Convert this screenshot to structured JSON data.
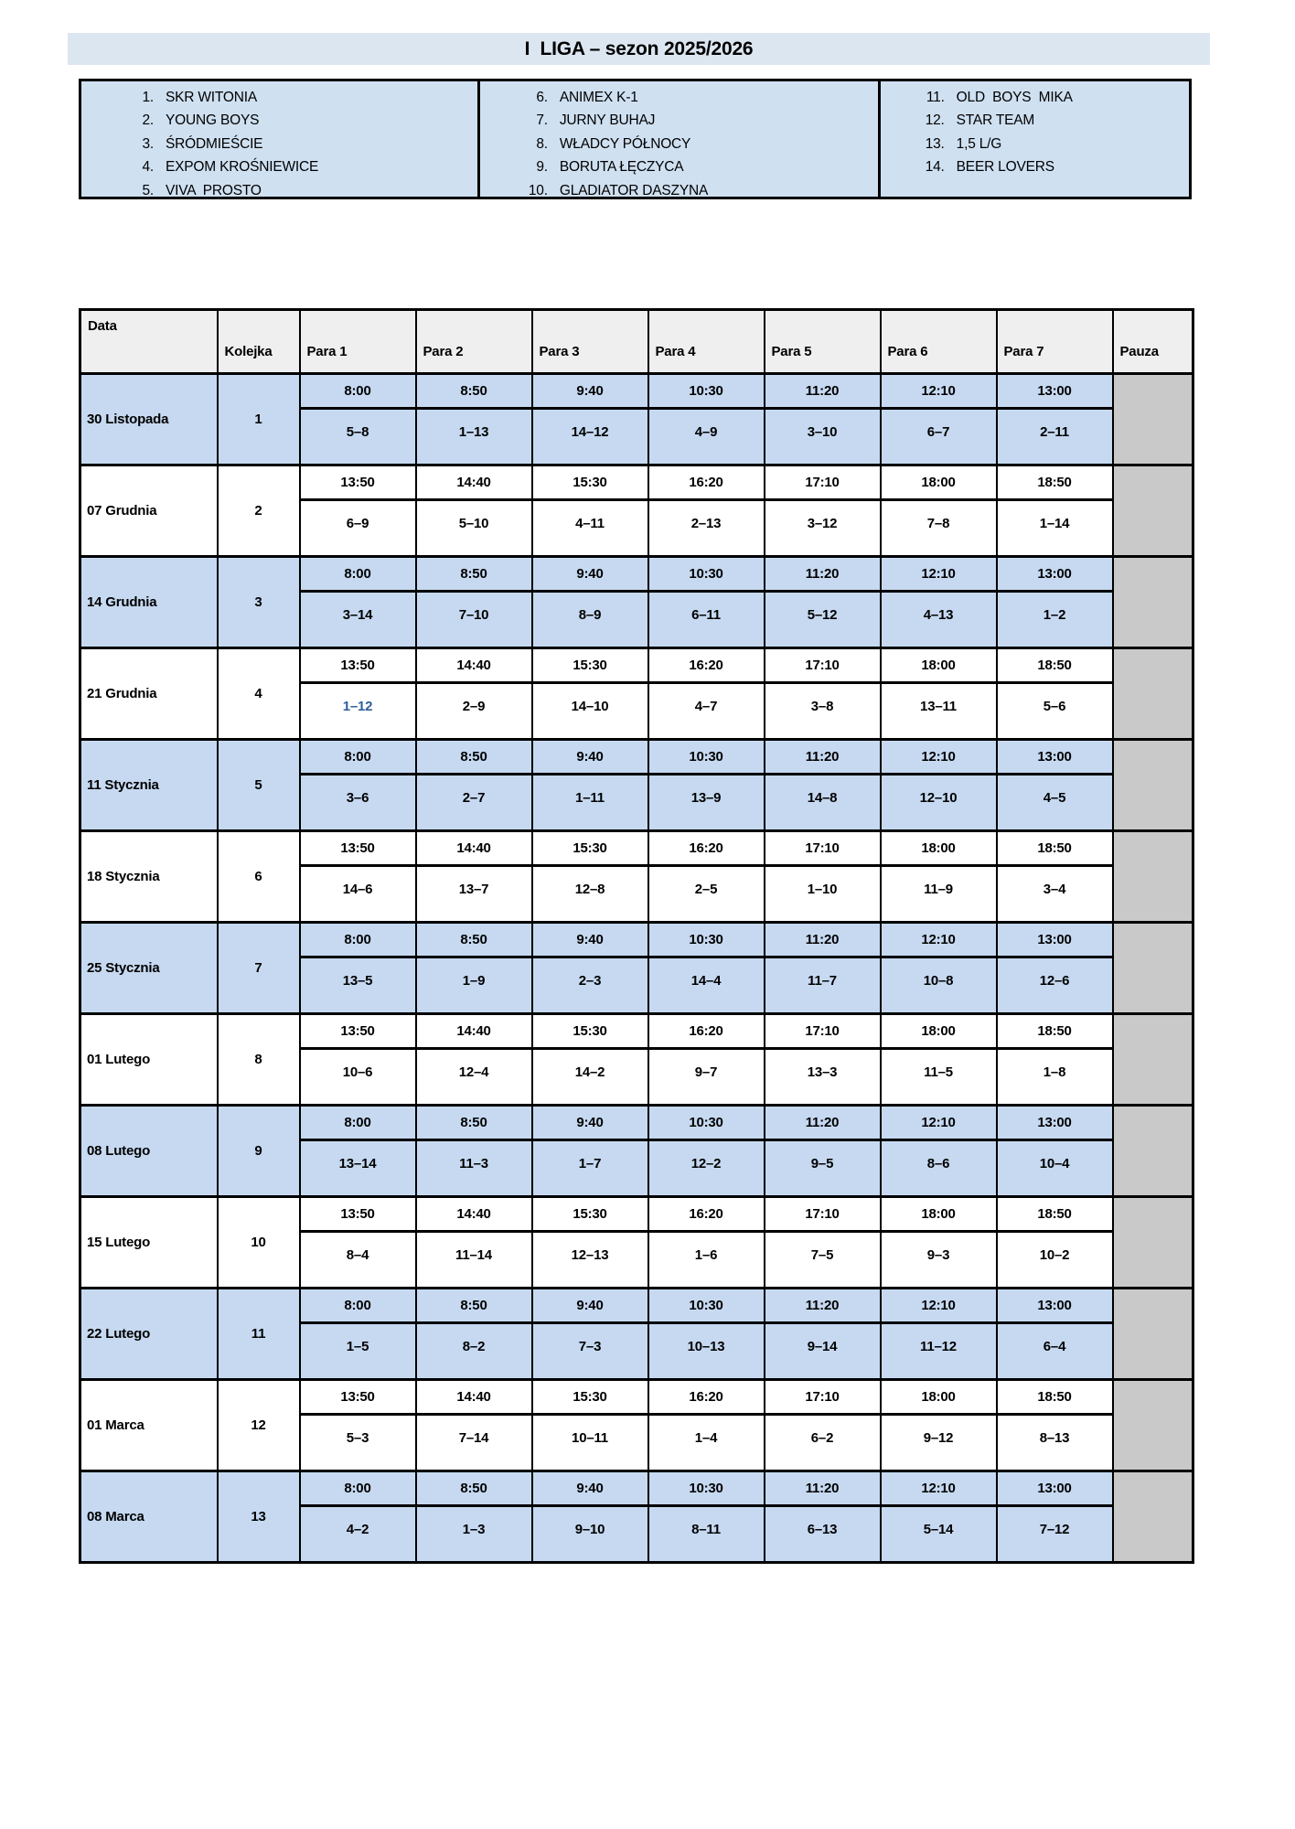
{
  "title": "I  LIGA – sezon 2025/2026",
  "colors": {
    "title_bar": "#dce6f1",
    "teams_box": "#cfe0f1",
    "header_bg": "#efefef",
    "row_blue": "#c6d9f1",
    "pauza_gray": "#c9c9c9",
    "highlight_text": "#2d5f9b"
  },
  "teams": {
    "columns": [
      [
        {
          "num": "1.",
          "name": "SKR WITONIA"
        },
        {
          "num": "2.",
          "name": "YOUNG BOYS"
        },
        {
          "num": "3.",
          "name": "ŚRÓDMIEŚCIE"
        },
        {
          "num": "4.",
          "name": "EXPOM KROŚNIEWICE"
        },
        {
          "num": "5.",
          "name": "VIVA  PROSTO"
        }
      ],
      [
        {
          "num": "6.",
          "name": "ANIMEX K-1"
        },
        {
          "num": "7.",
          "name": "JURNY BUHAJ"
        },
        {
          "num": "8.",
          "name": "WŁADCY PÓŁNOCY"
        },
        {
          "num": "9.",
          "name": "BORUTA ŁĘCZYCA"
        },
        {
          "num": "10.",
          "name": "GLADIATOR DASZYNA"
        }
      ],
      [
        {
          "num": "11.",
          "name": "OLD  BOYS  MIKA"
        },
        {
          "num": "12.",
          "name": "STAR TEAM"
        },
        {
          "num": "13.",
          "name": "1,5 L/G"
        },
        {
          "num": "14.",
          "name": "BEER LOVERS"
        }
      ]
    ]
  },
  "schedule": {
    "headers": [
      "Data",
      "Kolejka",
      "Para 1",
      "Para 2",
      "Para 3",
      "Para 4",
      "Para 5",
      "Para 6",
      "Para 7",
      "Pauza"
    ],
    "rows": [
      {
        "date": "30 Listopada",
        "kolejka": "1",
        "shade": "blue",
        "times": [
          "8:00",
          "8:50",
          "9:40",
          "10:30",
          "11:20",
          "12:10",
          "13:00"
        ],
        "pairs": [
          "5–8",
          "1–13",
          "14–12",
          "4–9",
          "3–10",
          "6–7",
          "2–11"
        ]
      },
      {
        "date": "07 Grudnia",
        "kolejka": "2",
        "shade": "white",
        "times": [
          "13:50",
          "14:40",
          "15:30",
          "16:20",
          "17:10",
          "18:00",
          "18:50"
        ],
        "pairs": [
          "6–9",
          "5–10",
          "4–11",
          "2–13",
          "3–12",
          "7–8",
          "1–14"
        ]
      },
      {
        "date": "14 Grudnia",
        "kolejka": "3",
        "shade": "blue",
        "times": [
          "8:00",
          "8:50",
          "9:40",
          "10:30",
          "11:20",
          "12:10",
          "13:00"
        ],
        "pairs": [
          "3–14",
          "7–10",
          "8–9",
          "6–11",
          "5–12",
          "4–13",
          "1–2"
        ]
      },
      {
        "date": "21 Grudnia",
        "kolejka": "4",
        "shade": "white",
        "times": [
          "13:50",
          "14:40",
          "15:30",
          "16:20",
          "17:10",
          "18:00",
          "18:50"
        ],
        "pairs": [
          "1–12",
          "2–9",
          "14–10",
          "4–7",
          "3–8",
          "13–11",
          "5–6"
        ],
        "blue_pair_index": 0
      },
      {
        "date": "11 Stycznia",
        "kolejka": "5",
        "shade": "blue",
        "times": [
          "8:00",
          "8:50",
          "9:40",
          "10:30",
          "11:20",
          "12:10",
          "13:00"
        ],
        "pairs": [
          "3–6",
          "2–7",
          "1–11",
          "13–9",
          "14–8",
          "12–10",
          "4–5"
        ]
      },
      {
        "date": "18 Stycznia",
        "kolejka": "6",
        "shade": "white",
        "times": [
          "13:50",
          "14:40",
          "15:30",
          "16:20",
          "17:10",
          "18:00",
          "18:50"
        ],
        "pairs": [
          "14–6",
          "13–7",
          "12–8",
          "2–5",
          "1–10",
          "11–9",
          "3–4"
        ]
      },
      {
        "date": "25 Stycznia",
        "kolejka": "7",
        "shade": "blue",
        "times": [
          "8:00",
          "8:50",
          "9:40",
          "10:30",
          "11:20",
          "12:10",
          "13:00"
        ],
        "pairs": [
          "13–5",
          "1–9",
          "2–3",
          "14–4",
          "11–7",
          "10–8",
          "12–6"
        ]
      },
      {
        "date": "01 Lutego",
        "kolejka": "8",
        "shade": "white",
        "times": [
          "13:50",
          "14:40",
          "15:30",
          "16:20",
          "17:10",
          "18:00",
          "18:50"
        ],
        "pairs": [
          "10–6",
          "12–4",
          "14–2",
          "9–7",
          "13–3",
          "11–5",
          "1–8"
        ]
      },
      {
        "date": "08 Lutego",
        "kolejka": "9",
        "shade": "blue",
        "times": [
          "8:00",
          "8:50",
          "9:40",
          "10:30",
          "11:20",
          "12:10",
          "13:00"
        ],
        "pairs": [
          "13–14",
          "11–3",
          "1–7",
          "12–2",
          "9–5",
          "8–6",
          "10–4"
        ]
      },
      {
        "date": "15 Lutego",
        "kolejka": "10",
        "shade": "white",
        "times": [
          "13:50",
          "14:40",
          "15:30",
          "16:20",
          "17:10",
          "18:00",
          "18:50"
        ],
        "pairs": [
          "8–4",
          "11–14",
          "12–13",
          "1–6",
          "7–5",
          "9–3",
          "10–2"
        ]
      },
      {
        "date": "22 Lutego",
        "kolejka": "11",
        "shade": "blue",
        "times": [
          "8:00",
          "8:50",
          "9:40",
          "10:30",
          "11:20",
          "12:10",
          "13:00"
        ],
        "pairs": [
          "1–5",
          "8–2",
          "7–3",
          "10–13",
          "9–14",
          "11–12",
          "6–4"
        ]
      },
      {
        "date": "01 Marca",
        "kolejka": "12",
        "shade": "white",
        "times": [
          "13:50",
          "14:40",
          "15:30",
          "16:20",
          "17:10",
          "18:00",
          "18:50"
        ],
        "pairs": [
          "5–3",
          "7–14",
          "10–11",
          "1–4",
          "6–2",
          "9–12",
          "8–13"
        ]
      },
      {
        "date": "08 Marca",
        "kolejka": "13",
        "shade": "blue",
        "times": [
          "8:00",
          "8:50",
          "9:40",
          "10:30",
          "11:20",
          "12:10",
          "13:00"
        ],
        "pairs": [
          "4–2",
          "1–3",
          "9–10",
          "8–11",
          "6–13",
          "5–14",
          "7–12"
        ]
      }
    ]
  }
}
